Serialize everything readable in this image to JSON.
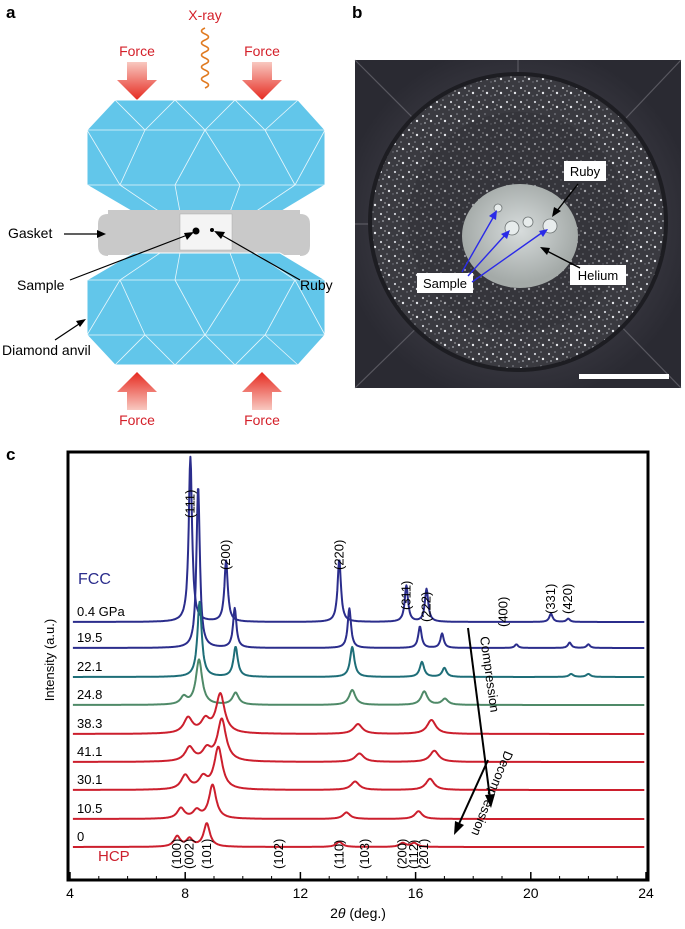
{
  "panel_labels": {
    "a": "a",
    "b": "b",
    "c": "c"
  },
  "panel_a": {
    "xray": "X-ray",
    "force": "Force",
    "gasket": "Gasket",
    "sample": "Sample",
    "ruby": "Ruby",
    "anvil": "Diamond anvil"
  },
  "panel_b": {
    "ruby": "Ruby",
    "sample": "Sample",
    "helium": "Helium"
  },
  "chart_data": {
    "type": "line",
    "xlabel_prefix": "2",
    "xlabel_theta": "θ",
    "xlabel_suffix": " (deg.)",
    "ylabel": "Intensity (a.u.)",
    "xlim": [
      4,
      24
    ],
    "xticks": [
      "4",
      "8",
      "12",
      "16",
      "20",
      "24"
    ],
    "fcc_label": "FCC",
    "hcp_label": "HCP",
    "compression": "Compression",
    "decompression": "Decompression",
    "fcc_peaks": [
      {
        "label": "(111)",
        "x": 8.18
      },
      {
        "label": "(200)",
        "x": 9.42
      },
      {
        "label": "(220)",
        "x": 13.35
      },
      {
        "label": "(311)",
        "x": 15.68
      },
      {
        "label": "(222)",
        "x": 16.38
      },
      {
        "label": "(400)",
        "x": 19.05
      },
      {
        "label": "(331)",
        "x": 20.7
      },
      {
        "label": "(420)",
        "x": 21.3
      }
    ],
    "hcp_peaks": [
      {
        "label": "(100)",
        "x": 7.72
      },
      {
        "label": "(002)",
        "x": 8.15
      },
      {
        "label": "(101)",
        "x": 8.75
      },
      {
        "label": "(102)",
        "x": 11.25
      },
      {
        "label": "(110)",
        "x": 13.35
      },
      {
        "label": "(103)",
        "x": 14.25
      },
      {
        "label": "(200)",
        "x": 15.55
      },
      {
        "label": "(112)",
        "x": 15.95
      },
      {
        "label": "(201)",
        "x": 16.3
      }
    ],
    "series": [
      {
        "name": "0.4 GPa",
        "color": "#2b2d8c",
        "peaks": [
          [
            8.18,
            1.0
          ],
          [
            9.42,
            0.37
          ],
          [
            13.35,
            0.38
          ],
          [
            15.68,
            0.22
          ],
          [
            16.38,
            0.2
          ],
          [
            20.7,
            0.05
          ],
          [
            21.3,
            0.02
          ]
        ]
      },
      {
        "name": "19.5",
        "color": "#2b2d8c",
        "peaks": [
          [
            8.45,
            0.9
          ],
          [
            9.72,
            0.22
          ],
          [
            13.7,
            0.22
          ],
          [
            16.15,
            0.12
          ],
          [
            16.92,
            0.08
          ],
          [
            19.5,
            0.02
          ],
          [
            21.35,
            0.03
          ],
          [
            22.0,
            0.02
          ]
        ]
      },
      {
        "name": "22.1",
        "color": "#1e6e78",
        "peaks": [
          [
            8.5,
            0.5
          ],
          [
            9.75,
            0.2
          ],
          [
            13.8,
            0.2
          ],
          [
            16.22,
            0.1
          ],
          [
            17.0,
            0.06
          ],
          [
            21.4,
            0.02
          ],
          [
            22.0,
            0.02
          ]
        ]
      },
      {
        "name": "24.8",
        "color": "#4f8a68",
        "peaks": [
          [
            7.95,
            0.05
          ],
          [
            8.48,
            0.3
          ],
          [
            9.75,
            0.08
          ],
          [
            13.8,
            0.1
          ],
          [
            16.3,
            0.09
          ],
          [
            17.02,
            0.04
          ]
        ]
      },
      {
        "name": "38.3",
        "color": "#cc1f2d",
        "peaks": [
          [
            8.1,
            0.11
          ],
          [
            8.7,
            0.09
          ],
          [
            9.22,
            0.28
          ],
          [
            14.0,
            0.07
          ],
          [
            16.55,
            0.1
          ]
        ]
      },
      {
        "name": "41.1",
        "color": "#cc1f2d",
        "peaks": [
          [
            8.15,
            0.1
          ],
          [
            8.75,
            0.08
          ],
          [
            9.27,
            0.3
          ],
          [
            14.05,
            0.06
          ],
          [
            16.65,
            0.08
          ]
        ]
      },
      {
        "name": "30.1",
        "color": "#cc1f2d",
        "peaks": [
          [
            8.0,
            0.1
          ],
          [
            8.62,
            0.08
          ],
          [
            9.15,
            0.3
          ],
          [
            13.9,
            0.06
          ],
          [
            16.5,
            0.08
          ]
        ]
      },
      {
        "name": "10.5",
        "color": "#cc1f2d",
        "peaks": [
          [
            7.85,
            0.08
          ],
          [
            8.4,
            0.06
          ],
          [
            8.95,
            0.26
          ],
          [
            13.6,
            0.05
          ],
          [
            16.1,
            0.06
          ]
        ]
      },
      {
        "name": "0",
        "color": "#cc1f2d",
        "peaks": [
          [
            7.72,
            0.08
          ],
          [
            8.15,
            0.06
          ],
          [
            8.75,
            0.18
          ],
          [
            13.35,
            0.04
          ],
          [
            15.55,
            0.03
          ],
          [
            15.95,
            0.03
          ]
        ]
      }
    ]
  }
}
